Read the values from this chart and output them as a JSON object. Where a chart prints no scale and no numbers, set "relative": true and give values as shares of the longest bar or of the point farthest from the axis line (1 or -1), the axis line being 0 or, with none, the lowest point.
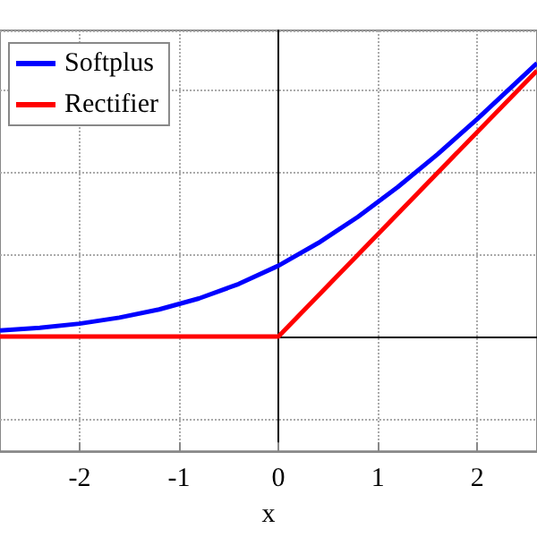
{
  "chart_data": {
    "type": "line",
    "xlabel": "x",
    "relative": true,
    "xlim": [
      -2.8,
      2.6
    ],
    "xticks": [
      -2,
      -1,
      0,
      1,
      2
    ],
    "grid": true,
    "legend": "top left",
    "marker": "none",
    "line_style": "solid",
    "series": [
      {
        "name": "Softplus",
        "color": "#0000ff",
        "x": [
          -2.8,
          -2.4,
          -2.0,
          -1.6,
          -1.2,
          -0.8,
          -0.4,
          0,
          0.4,
          0.8,
          1.2,
          1.6,
          2.0,
          2.4,
          2.6
        ],
        "values": [
          0.022,
          0.032,
          0.047,
          0.069,
          0.099,
          0.139,
          0.192,
          0.259,
          0.342,
          0.438,
          0.547,
          0.667,
          0.796,
          0.932,
          1
        ]
      },
      {
        "name": "Rectifier",
        "color": "#ff0000",
        "x": [
          -2.8,
          0,
          2.6
        ],
        "values": [
          0,
          0,
          0.973
        ]
      }
    ]
  }
}
